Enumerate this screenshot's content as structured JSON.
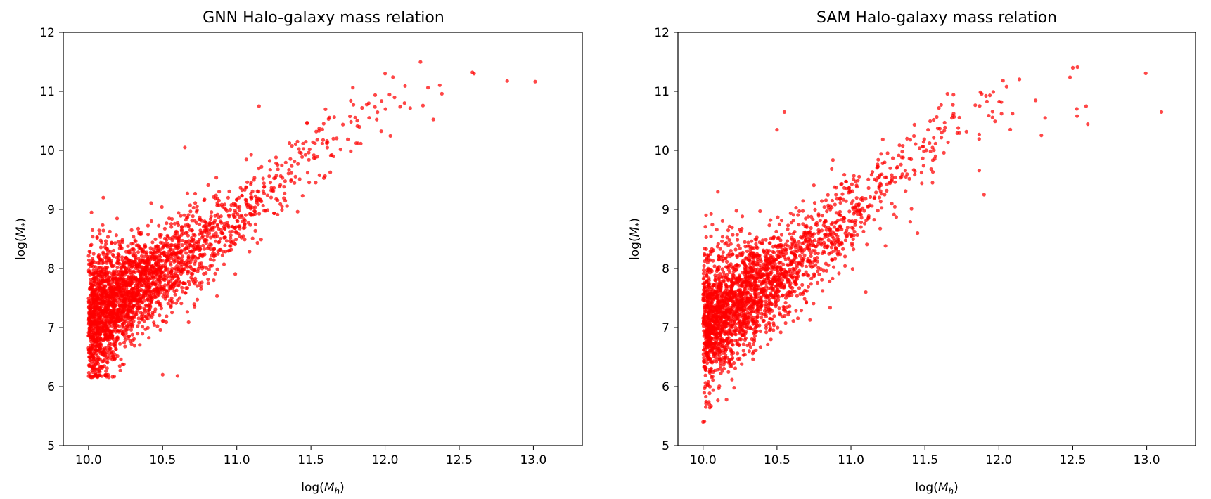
{
  "chart_data": [
    {
      "type": "scatter",
      "title": "GNN Halo-galaxy mass relation",
      "xlabel": "log(M_h)",
      "ylabel": "log(M_*)",
      "xlim": [
        9.83,
        13.33
      ],
      "ylim": [
        5,
        12
      ],
      "x_ticks": [
        "10.0",
        "10.5",
        "11.0",
        "11.5",
        "12.0",
        "12.5",
        "13.0"
      ],
      "y_ticks": [
        "5",
        "6",
        "7",
        "8",
        "9",
        "10",
        "11",
        "12"
      ],
      "marker_color": "#ff0000",
      "grid": false,
      "legend": "none",
      "trend": {
        "x": [
          10.0,
          10.25,
          10.5,
          10.75,
          11.0,
          11.25,
          11.5,
          11.75,
          12.0,
          12.25,
          12.5,
          12.75,
          13.0,
          13.15
        ],
        "y": [
          7.1,
          7.55,
          7.95,
          8.4,
          8.85,
          9.4,
          9.95,
          10.45,
          10.75,
          10.9,
          10.95,
          11.0,
          11.05,
          11.1
        ],
        "spread": [
          0.6,
          0.42,
          0.38,
          0.36,
          0.34,
          0.32,
          0.3,
          0.3,
          0.3,
          0.28,
          0.26,
          0.22,
          0.18,
          0.15
        ],
        "y_floor": 6.15
      },
      "outliers": [
        [
          10.02,
          8.95
        ],
        [
          10.1,
          9.2
        ],
        [
          10.5,
          6.2
        ],
        [
          10.6,
          6.18
        ],
        [
          10.65,
          10.05
        ],
        [
          11.15,
          10.75
        ],
        [
          12.0,
          11.3
        ],
        [
          12.6,
          11.3
        ]
      ]
    },
    {
      "type": "scatter",
      "title": "SAM Halo-galaxy mass relation",
      "xlabel": "log(M_h)",
      "ylabel": "log(M_*)",
      "xlim": [
        9.83,
        13.33
      ],
      "ylim": [
        5,
        12
      ],
      "x_ticks": [
        "10.0",
        "10.5",
        "11.0",
        "11.5",
        "12.0",
        "12.5",
        "13.0"
      ],
      "y_ticks": [
        "5",
        "6",
        "7",
        "8",
        "9",
        "10",
        "11",
        "12"
      ],
      "marker_color": "#ff0000",
      "grid": false,
      "legend": "none",
      "trend": {
        "x": [
          10.0,
          10.25,
          10.5,
          10.75,
          11.0,
          11.25,
          11.5,
          11.75,
          12.0,
          12.25,
          12.5,
          12.75,
          13.0,
          13.15
        ],
        "y": [
          7.0,
          7.45,
          7.9,
          8.35,
          8.85,
          9.45,
          10.0,
          10.5,
          10.75,
          10.85,
          10.9,
          10.95,
          11.0,
          11.05
        ],
        "spread": [
          0.6,
          0.5,
          0.42,
          0.38,
          0.34,
          0.32,
          0.32,
          0.33,
          0.35,
          0.35,
          0.32,
          0.28,
          0.22,
          0.2
        ],
        "y_floor": 5.4
      },
      "outliers": [
        [
          10.0,
          5.4
        ],
        [
          10.02,
          8.9
        ],
        [
          10.1,
          9.3
        ],
        [
          10.5,
          10.35
        ],
        [
          10.55,
          10.65
        ],
        [
          11.1,
          7.6
        ],
        [
          11.45,
          8.6
        ],
        [
          11.9,
          9.25
        ],
        [
          12.5,
          11.4
        ],
        [
          13.1,
          10.65
        ]
      ]
    }
  ]
}
